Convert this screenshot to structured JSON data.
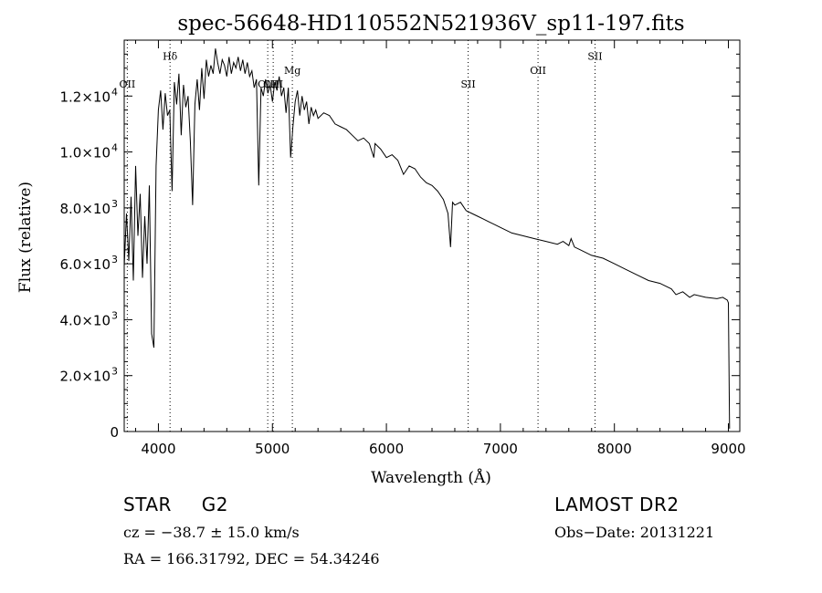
{
  "chart_data": {
    "type": "line",
    "title": "spec-56648-HD110552N521936V_sp11-197.fits",
    "xlabel": "Wavelength (Å)",
    "ylabel": "Flux (relative)",
    "xlim": [
      3700,
      9100
    ],
    "ylim": [
      0,
      14000
    ],
    "grid": false,
    "x_ticks": [
      {
        "value": 4000,
        "label": "4000"
      },
      {
        "value": 5000,
        "label": "5000"
      },
      {
        "value": 6000,
        "label": "6000"
      },
      {
        "value": 7000,
        "label": "7000"
      },
      {
        "value": 8000,
        "label": "8000"
      },
      {
        "value": 9000,
        "label": "9000"
      }
    ],
    "y_ticks": [
      {
        "value": 0,
        "mant": "0",
        "exp": ""
      },
      {
        "value": 2000,
        "mant": "2.0×10",
        "exp": "3"
      },
      {
        "value": 4000,
        "mant": "4.0×10",
        "exp": "3"
      },
      {
        "value": 6000,
        "mant": "6.0×10",
        "exp": "3"
      },
      {
        "value": 8000,
        "mant": "8.0×10",
        "exp": "3"
      },
      {
        "value": 10000,
        "mant": "1.0×10",
        "exp": "4"
      },
      {
        "value": 12000,
        "mant": "1.2×10",
        "exp": "4"
      }
    ],
    "line_markers": [
      {
        "label": "OII",
        "wavelength": 3727,
        "label_flux": 12300
      },
      {
        "label": "Hδ",
        "wavelength": 4102,
        "label_flux": 13300
      },
      {
        "label": "OIII",
        "wavelength": 4959,
        "label_flux": 12300
      },
      {
        "label": "OIII",
        "wavelength": 5007,
        "label_flux": 12300
      },
      {
        "label": "Mg",
        "wavelength": 5175,
        "label_flux": 12800
      },
      {
        "label": "SII",
        "wavelength": 6717,
        "label_flux": 12300
      },
      {
        "label": "OII",
        "wavelength": 7330,
        "label_flux": 12800
      },
      {
        "label": "SII",
        "wavelength": 7830,
        "label_flux": 13300
      }
    ],
    "series": [
      {
        "x": [
          3700,
          3720,
          3740,
          3760,
          3780,
          3800,
          3820,
          3840,
          3860,
          3880,
          3900,
          3920,
          3940,
          3960,
          3980,
          4000,
          4020,
          4040,
          4060,
          4080,
          4100,
          4120,
          4140,
          4160,
          4180,
          4200,
          4220,
          4240,
          4260,
          4280,
          4300,
          4320,
          4340,
          4360,
          4380,
          4400,
          4420,
          4440,
          4460,
          4480,
          4500,
          4520,
          4540,
          4560,
          4580,
          4600,
          4620,
          4640,
          4660,
          4680,
          4700,
          4720,
          4740,
          4760,
          4780,
          4800,
          4820,
          4840,
          4860,
          4880,
          4900,
          4920,
          4940,
          4960,
          4980,
          5000,
          5020,
          5040,
          5060,
          5080,
          5100,
          5120,
          5140,
          5160,
          5180,
          5200,
          5220,
          5240,
          5260,
          5280,
          5300,
          5320,
          5340,
          5360,
          5380,
          5400,
          5450,
          5500,
          5550,
          5600,
          5650,
          5700,
          5750,
          5800,
          5850,
          5890,
          5900,
          5950,
          6000,
          6050,
          6100,
          6150,
          6200,
          6250,
          6300,
          6350,
          6400,
          6450,
          6500,
          6540,
          6563,
          6580,
          6600,
          6650,
          6700,
          6750,
          6800,
          6850,
          6900,
          6950,
          7000,
          7100,
          7200,
          7300,
          7400,
          7500,
          7550,
          7600,
          7620,
          7650,
          7700,
          7800,
          7900,
          8000,
          8100,
          8200,
          8300,
          8400,
          8500,
          8540,
          8600,
          8660,
          8700,
          8800,
          8900,
          8950,
          8990,
          9000,
          9010
        ],
        "y": [
          5900,
          7800,
          6100,
          8400,
          5400,
          9500,
          7000,
          8500,
          5500,
          7700,
          6000,
          8800,
          3500,
          3000,
          9500,
          11500,
          12200,
          10800,
          12100,
          11300,
          11500,
          8600,
          12500,
          11700,
          12800,
          10600,
          12400,
          11600,
          12000,
          10400,
          8100,
          11700,
          12600,
          11500,
          13000,
          11900,
          13300,
          12700,
          13100,
          12800,
          13700,
          13200,
          12800,
          13300,
          13100,
          12700,
          13400,
          12800,
          13200,
          13000,
          13400,
          12900,
          13300,
          12800,
          13200,
          12700,
          12900,
          12300,
          12600,
          8800,
          12300,
          12000,
          12600,
          12100,
          12400,
          11800,
          12500,
          12200,
          12700,
          12000,
          12300,
          11400,
          12300,
          9800,
          10900,
          11800,
          12200,
          11300,
          12000,
          11500,
          11800,
          11000,
          11600,
          11300,
          11500,
          11200,
          11400,
          11300,
          11000,
          10900,
          10800,
          10600,
          10400,
          10500,
          10300,
          9800,
          10300,
          10100,
          9800,
          9900,
          9700,
          9200,
          9500,
          9400,
          9100,
          8900,
          8800,
          8600,
          8300,
          7800,
          6600,
          8200,
          8100,
          8200,
          7900,
          7800,
          7700,
          7600,
          7500,
          7400,
          7300,
          7100,
          7000,
          6900,
          6800,
          6700,
          6800,
          6650,
          6900,
          6600,
          6500,
          6300,
          6200,
          6000,
          5800,
          5600,
          5400,
          5300,
          5100,
          4900,
          5000,
          4800,
          4900,
          4800,
          4750,
          4800,
          4700,
          4600,
          100
        ]
      }
    ]
  },
  "footer": {
    "object_type": "STAR",
    "subclass": "G2",
    "survey": "LAMOST DR2",
    "cz": "cz = −38.7 ± 15.0 km/s",
    "obs_date": "Obs−Date: 20131221",
    "coords": "RA = 166.31792, DEC =  54.34246"
  }
}
